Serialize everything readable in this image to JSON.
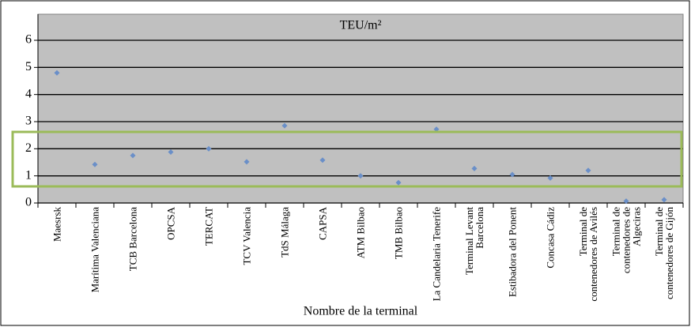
{
  "chart_data": {
    "type": "scatter",
    "title": "TEU/m²",
    "x_label": "Nombre de la terminal",
    "categories": [
      "Maesrsk",
      "Marítima Valenciana",
      "TCB Barcelona",
      "OPCSA",
      "TERCAT",
      "TCV Valencia",
      "TdS Málaga",
      "CAPSA",
      "ATM Bilbao",
      "TMB Bilbao",
      "La Candelaria Tenerife",
      "Terminal Levant Barcelona",
      "Estibadora del Ponent",
      "Concasa Cádiz",
      "Terminal de contenedores de Avilés",
      "Terminal de contenedores de Algeciras",
      "Terminal de contenedores de Gijón"
    ],
    "values": [
      4.8,
      1.42,
      1.75,
      1.88,
      2.0,
      1.52,
      2.85,
      1.58,
      1.0,
      0.75,
      2.72,
      1.27,
      1.05,
      0.92,
      1.2,
      0.07,
      0.12
    ],
    "color": "#6a8fc8",
    "ylim": [
      0,
      6
    ],
    "yticks": [
      0,
      1,
      2,
      3,
      4,
      5,
      6
    ],
    "grid": true
  }
}
